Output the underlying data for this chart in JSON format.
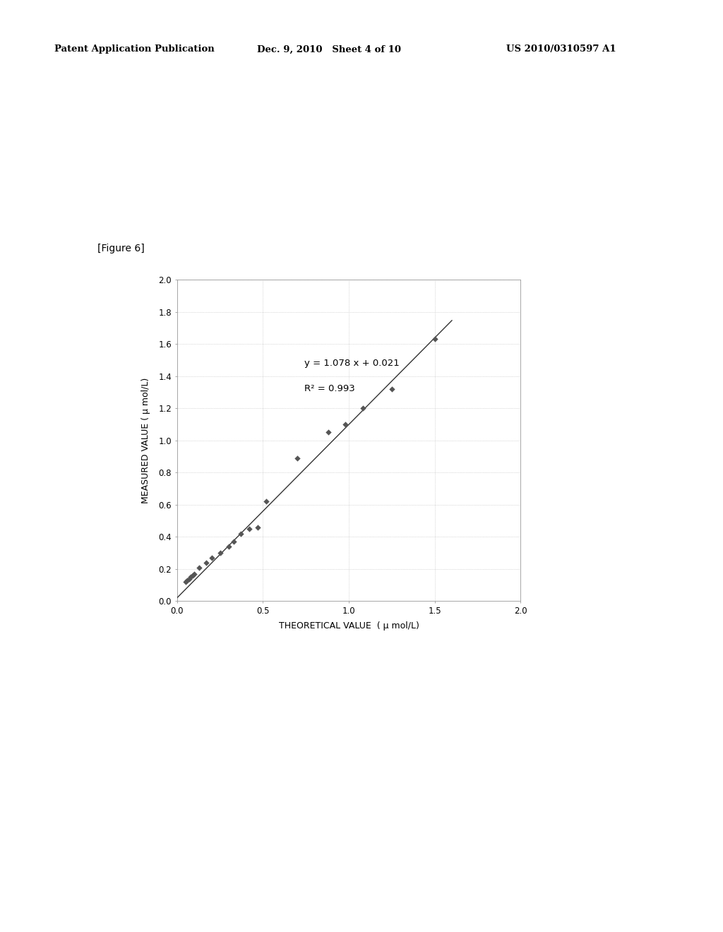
{
  "header_left": "Patent Application Publication",
  "header_mid": "Dec. 9, 2010   Sheet 4 of 10",
  "header_right": "US 2010/0310597 A1",
  "figure_label": "[Figure 6]",
  "equation": "y = 1.078 x + 0.021",
  "r_squared": "R² = 0.993",
  "xlabel": "THEORETICAL VALUE  ( μ mol/L)",
  "ylabel": "MEASURED VALUE ( μ mol/L)",
  "xlim": [
    0.0,
    2.0
  ],
  "ylim": [
    0.0,
    2.0
  ],
  "xticks": [
    0.0,
    0.5,
    1.0,
    1.5,
    2.0
  ],
  "yticks": [
    0.0,
    0.2,
    0.4,
    0.6,
    0.8,
    1.0,
    1.2,
    1.4,
    1.6,
    1.8,
    2.0
  ],
  "scatter_x": [
    0.05,
    0.06,
    0.07,
    0.08,
    0.09,
    0.1,
    0.13,
    0.17,
    0.2,
    0.25,
    0.3,
    0.33,
    0.37,
    0.42,
    0.47,
    0.52,
    0.7,
    0.88,
    0.98,
    1.08,
    1.25,
    1.5
  ],
  "scatter_y": [
    0.12,
    0.13,
    0.14,
    0.15,
    0.16,
    0.17,
    0.21,
    0.24,
    0.27,
    0.3,
    0.34,
    0.37,
    0.42,
    0.45,
    0.46,
    0.62,
    0.89,
    1.05,
    1.1,
    1.2,
    1.32,
    1.63
  ],
  "line_slope": 1.078,
  "line_intercept": 0.021,
  "marker_color": "#555555",
  "line_color": "#333333",
  "background_color": "#ffffff",
  "header_fontsize": 9.5,
  "figure_label_fontsize": 10,
  "axis_label_fontsize": 9,
  "tick_fontsize": 8.5,
  "annotation_fontsize": 9.5
}
